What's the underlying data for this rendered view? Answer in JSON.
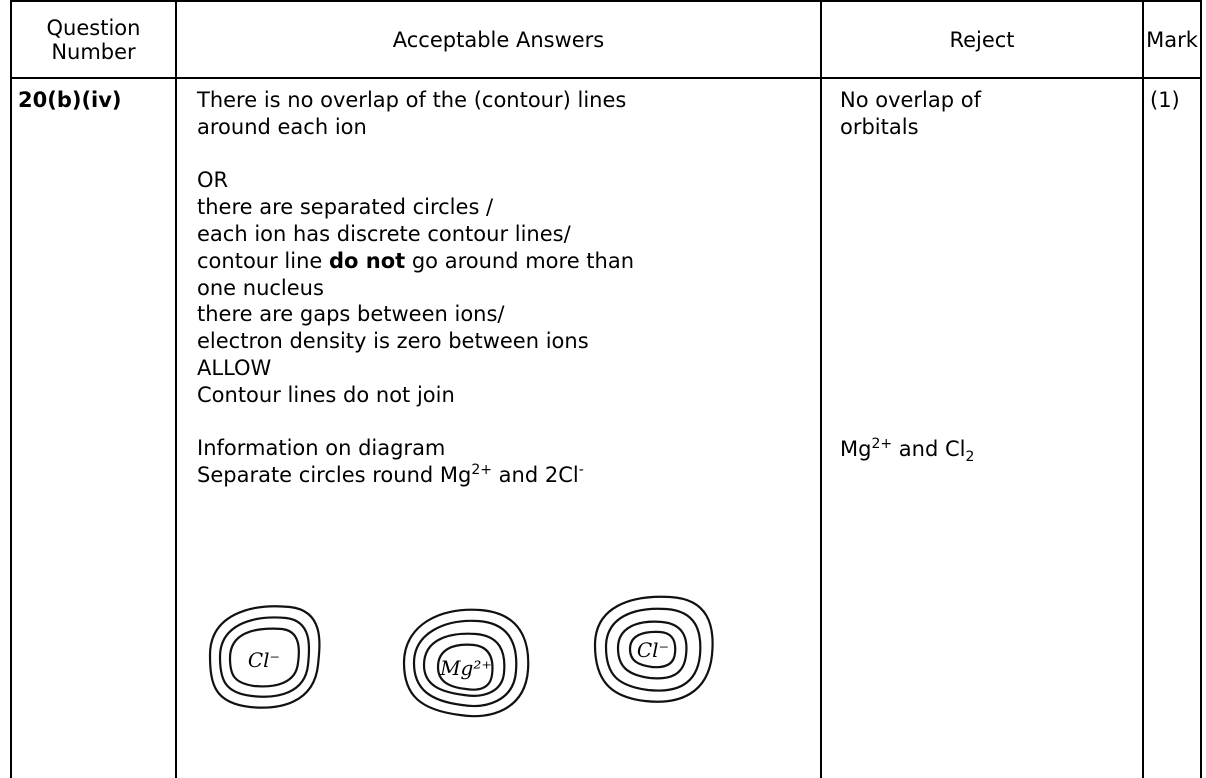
{
  "table": {
    "header": [
      "Question Number",
      "Acceptable Answers",
      "Reject",
      "Mark"
    ],
    "rows": [
      {
        "question": "20(b)(iv)",
        "answer_paragraphs": [
          [
            [
              "There is no overlap of the (contour) lines"
            ],
            [
              "around each ion"
            ]
          ],
          [
            [
              "OR"
            ],
            [
              "there are separated circles /"
            ],
            [
              "each ion has discrete contour lines/"
            ],
            [
              "contour line ",
              {
                "text": "do not",
                "style": "bold"
              },
              " go around more than"
            ],
            [
              "one nucleus"
            ],
            [
              "there are gaps between ions/"
            ],
            [
              "electron density is zero between ions"
            ],
            [
              "ALLOW"
            ],
            [
              "Contour lines do not join"
            ]
          ],
          [
            [
              "Information on diagram"
            ],
            [
              "Separate circles round Mg",
              {
                "text": "2+",
                "style": "sup"
              },
              " and 2Cl",
              {
                "text": "-",
                "style": "sup"
              }
            ]
          ]
        ],
        "reject": [
          [
            [
              "No overlap of"
            ],
            [
              "orbitals"
            ]
          ],
          [
            [
              "Mg",
              {
                "text": "2+",
                "style": "sup"
              },
              " and Cl",
              {
                "text": "2",
                "style": "sub"
              }
            ]
          ]
        ],
        "mark": "(1)"
      }
    ]
  },
  "diagram": {
    "labels": [
      "Cl⁻",
      "Mg²⁺",
      "Cl⁻"
    ]
  }
}
